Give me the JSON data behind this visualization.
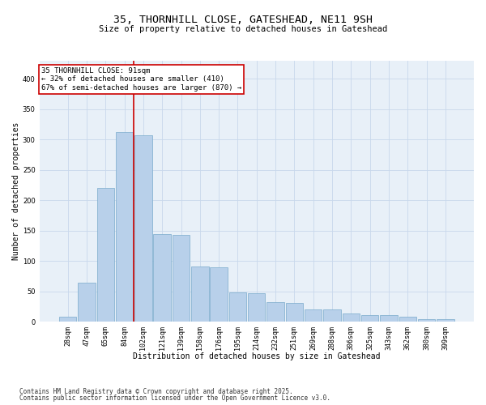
{
  "title_line1": "35, THORNHILL CLOSE, GATESHEAD, NE11 9SH",
  "title_line2": "Size of property relative to detached houses in Gateshead",
  "xlabel": "Distribution of detached houses by size in Gateshead",
  "ylabel": "Number of detached properties",
  "categories": [
    "28sqm",
    "47sqm",
    "65sqm",
    "84sqm",
    "102sqm",
    "121sqm",
    "139sqm",
    "158sqm",
    "176sqm",
    "195sqm",
    "214sqm",
    "232sqm",
    "251sqm",
    "269sqm",
    "288sqm",
    "306sqm",
    "325sqm",
    "343sqm",
    "362sqm",
    "380sqm",
    "399sqm"
  ],
  "values": [
    8,
    65,
    220,
    312,
    307,
    144,
    143,
    91,
    90,
    48,
    47,
    32,
    31,
    21,
    21,
    14,
    11,
    11,
    9,
    5,
    5
  ],
  "bar_color": "#b8d0ea",
  "bar_edge_color": "#7aabcc",
  "vline_x": 3.5,
  "vline_color": "#cc0000",
  "annotation_text": "35 THORNHILL CLOSE: 91sqm\n← 32% of detached houses are smaller (410)\n67% of semi-detached houses are larger (870) →",
  "annotation_box_color": "#ffffff",
  "annotation_box_edge": "#cc0000",
  "ylim": [
    0,
    430
  ],
  "yticks": [
    0,
    50,
    100,
    150,
    200,
    250,
    300,
    350,
    400
  ],
  "grid_color": "#c8d8ec",
  "background_color": "#e8f0f8",
  "footer_line1": "Contains HM Land Registry data © Crown copyright and database right 2025.",
  "footer_line2": "Contains public sector information licensed under the Open Government Licence v3.0.",
  "title_fontsize": 9.5,
  "subtitle_fontsize": 7.5,
  "annotation_fontsize": 6.5,
  "axis_label_fontsize": 7,
  "tick_fontsize": 6,
  "footer_fontsize": 5.5
}
